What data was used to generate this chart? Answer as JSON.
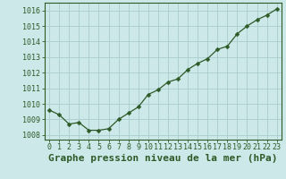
{
  "x": [
    0,
    1,
    2,
    3,
    4,
    5,
    6,
    7,
    8,
    9,
    10,
    11,
    12,
    13,
    14,
    15,
    16,
    17,
    18,
    19,
    20,
    21,
    22,
    23
  ],
  "y": [
    1009.6,
    1009.3,
    1008.7,
    1008.8,
    1008.3,
    1008.3,
    1008.4,
    1009.0,
    1009.4,
    1009.8,
    1010.6,
    1010.9,
    1011.4,
    1011.6,
    1012.2,
    1012.6,
    1012.9,
    1013.5,
    1013.7,
    1014.5,
    1015.0,
    1015.4,
    1015.7,
    1016.1
  ],
  "line_color": "#2d5a27",
  "marker": "D",
  "marker_size": 2.5,
  "bg_color": "#cce8e8",
  "grid_color": "#aacccc",
  "xlabel": "Graphe pression niveau de la mer (hPa)",
  "ylabel_ticks": [
    1008,
    1009,
    1010,
    1011,
    1012,
    1013,
    1014,
    1015,
    1016
  ],
  "xlim": [
    -0.5,
    23.5
  ],
  "ylim": [
    1007.7,
    1016.5
  ],
  "xtick_labels": [
    "0",
    "1",
    "2",
    "3",
    "4",
    "5",
    "6",
    "7",
    "8",
    "9",
    "10",
    "11",
    "12",
    "13",
    "14",
    "15",
    "16",
    "17",
    "18",
    "19",
    "20",
    "21",
    "22",
    "23"
  ],
  "tick_fontsize": 6.0,
  "label_fontsize": 8.0
}
